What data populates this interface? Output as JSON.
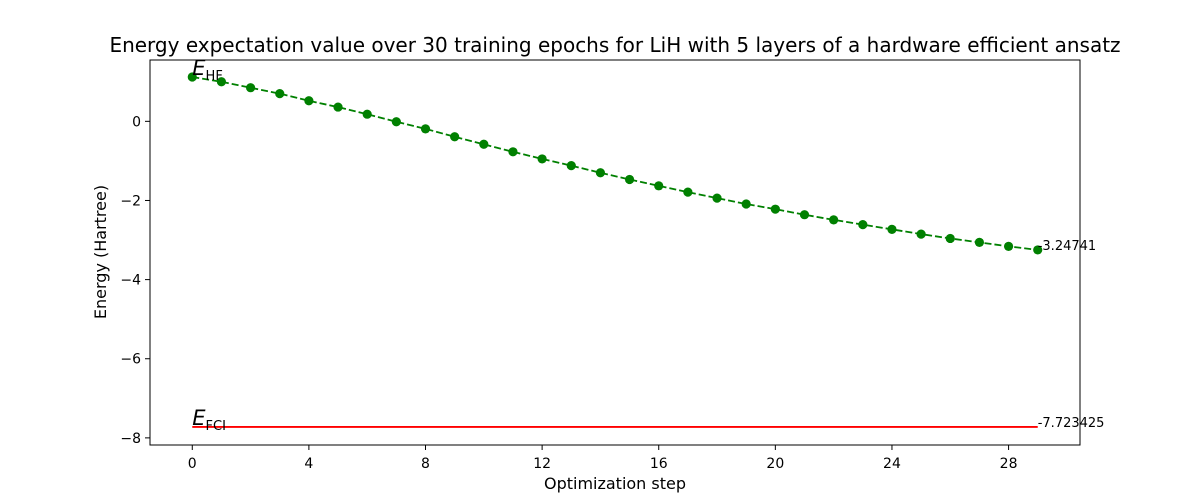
{
  "chart_data": {
    "type": "line",
    "title": "Energy expectation value over 30 training epochs for LiH with 5 layers of a hardware efficient ansatz",
    "xlabel": "Optimization step",
    "ylabel": "Energy (Hartree)",
    "xlim": [
      -1.45,
      30.45
    ],
    "ylim": [
      -8.18,
      1.55
    ],
    "xticks": [
      0,
      4,
      8,
      12,
      16,
      20,
      24,
      28
    ],
    "yticks": [
      0,
      -2,
      -4,
      -6,
      -8
    ],
    "series": [
      {
        "name": "energy",
        "color": "#008000",
        "style": "dashed-with-circles",
        "x": [
          0,
          1,
          2,
          3,
          4,
          5,
          6,
          7,
          8,
          9,
          10,
          11,
          12,
          13,
          14,
          15,
          16,
          17,
          18,
          19,
          20,
          21,
          22,
          23,
          24,
          25,
          26,
          27,
          28,
          29
        ],
        "values": [
          1.12,
          1.0,
          0.85,
          0.7,
          0.52,
          0.36,
          0.18,
          -0.01,
          -0.19,
          -0.39,
          -0.58,
          -0.77,
          -0.95,
          -1.12,
          -1.3,
          -1.47,
          -1.63,
          -1.79,
          -1.94,
          -2.09,
          -2.22,
          -2.36,
          -2.49,
          -2.61,
          -2.73,
          -2.85,
          -2.96,
          -3.06,
          -3.16,
          -3.25
        ]
      },
      {
        "name": "fci",
        "color": "#ff0000",
        "style": "solid",
        "x": [
          0,
          29
        ],
        "values": [
          -7.723425,
          -7.723425
        ]
      }
    ],
    "annotations": {
      "hf_label": {
        "base": "E",
        "sub": "HF",
        "x": 0,
        "y": 1.12
      },
      "fci_label": {
        "base": "E",
        "sub": "FCI",
        "x": 0,
        "y": -7.723425
      },
      "final_value": {
        "text": "-3.24741",
        "x": 29,
        "y": -3.24741
      },
      "fci_value": {
        "text": "-7.723425",
        "x": 29,
        "y": -7.723425
      }
    }
  }
}
